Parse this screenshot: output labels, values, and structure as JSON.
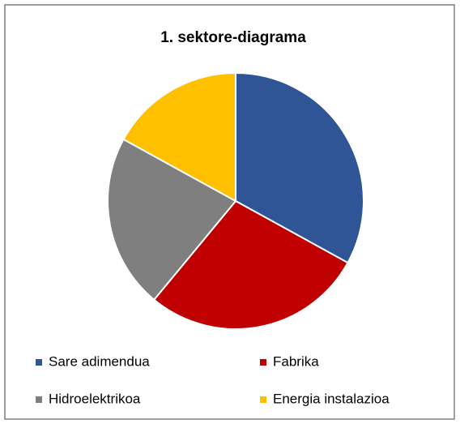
{
  "chart_data": {
    "type": "pie",
    "title": "1. sektore-diagrama",
    "categories": [
      "Sare adimendua",
      "Fabrika",
      "Hidroelektrikoa",
      "Energia instalazioa"
    ],
    "values": [
      33,
      28,
      22,
      17
    ],
    "colors": [
      "#2f5597",
      "#c00000",
      "#7f7f7f",
      "#ffc000"
    ],
    "legend": "bottom"
  }
}
